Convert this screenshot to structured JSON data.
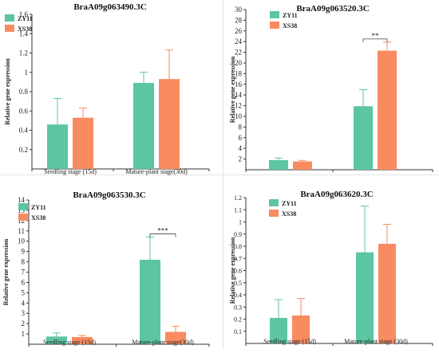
{
  "colors": {
    "zy11": "#5cc5a2",
    "xs38": "#f98b61",
    "axis": "#333333",
    "sig": "#444444"
  },
  "chart_data": [
    {
      "type": "bar",
      "title": "BraA09g063490.3C",
      "ylabel": "Relative gene expression",
      "xlabel": "",
      "categories": [
        "Seedling stage (15d)",
        "Mature-plant stage(30d)"
      ],
      "ylim": [
        0,
        1.6
      ],
      "yticks": [
        "0.2",
        "0.4",
        "0.6",
        "0.8",
        "1",
        "1.2",
        "1.4",
        "1.6"
      ],
      "series": [
        {
          "name": "ZY11",
          "values": [
            0.46,
            0.89
          ],
          "errors": [
            0.27,
            0.11
          ]
        },
        {
          "name": "XS38",
          "values": [
            0.53,
            0.93
          ],
          "errors": [
            0.1,
            0.3
          ]
        }
      ],
      "legend": "top-left",
      "grid": false,
      "significance": []
    },
    {
      "type": "bar",
      "title": "BraA09g063520.3C",
      "ylabel": "Relative gene expression",
      "xlabel": "",
      "categories": [
        "Seedling stage  (15d)",
        "Mature-plant stage(30d)"
      ],
      "ylim": [
        0,
        30
      ],
      "yticks": [
        "2",
        "4",
        "6",
        "8",
        "10",
        "12",
        "14",
        "16",
        "18",
        "20",
        "22",
        "24",
        "26",
        "28",
        "30"
      ],
      "series": [
        {
          "name": "ZY11",
          "values": [
            1.8,
            11.9
          ],
          "errors": [
            0.4,
            3.1
          ]
        },
        {
          "name": "XS38",
          "values": [
            1.55,
            22.3
          ],
          "errors": [
            0.2,
            1.6
          ]
        }
      ],
      "legend": "top-left",
      "grid": false,
      "significance": [
        {
          "category": 1,
          "label": "**"
        }
      ]
    },
    {
      "type": "bar",
      "title": "BraA09g063530.3C",
      "ylabel": "Relative gene expression",
      "xlabel": "",
      "categories": [
        "Seedling stage (15d)",
        "Mature-plant stage(30d)"
      ],
      "ylim": [
        0,
        14
      ],
      "yticks": [
        "1",
        "2",
        "3",
        "4",
        "5",
        "6",
        "7",
        "8",
        "9",
        "10",
        "11",
        "12",
        "13",
        "14"
      ],
      "series": [
        {
          "name": "ZY11",
          "values": [
            0.75,
            8.2
          ],
          "errors": [
            0.35,
            2.2
          ]
        },
        {
          "name": "XS38",
          "values": [
            0.7,
            1.2
          ],
          "errors": [
            0.15,
            0.55
          ]
        }
      ],
      "legend": "top-left",
      "grid": false,
      "significance": [
        {
          "category": 1,
          "label": "***"
        }
      ]
    },
    {
      "type": "bar",
      "title": "BraA09g063620.3C",
      "ylabel": "Relative gene expression",
      "xlabel": "",
      "categories": [
        "Seedling stage (15d)",
        "Mature-plant stage (30d)"
      ],
      "ylim": [
        0,
        1.2
      ],
      "yticks": [
        "0.1",
        "0.2",
        "0.3",
        "0.4",
        "0.5",
        "0.6",
        "0.7",
        "0.8",
        "0.9",
        "1",
        "1.1",
        "1.2"
      ],
      "series": [
        {
          "name": "ZY11",
          "values": [
            0.21,
            0.75
          ],
          "errors": [
            0.15,
            0.38
          ]
        },
        {
          "name": "XS38",
          "values": [
            0.23,
            0.82
          ],
          "errors": [
            0.14,
            0.16
          ]
        }
      ],
      "legend": "top-left",
      "grid": false,
      "significance": []
    }
  ]
}
